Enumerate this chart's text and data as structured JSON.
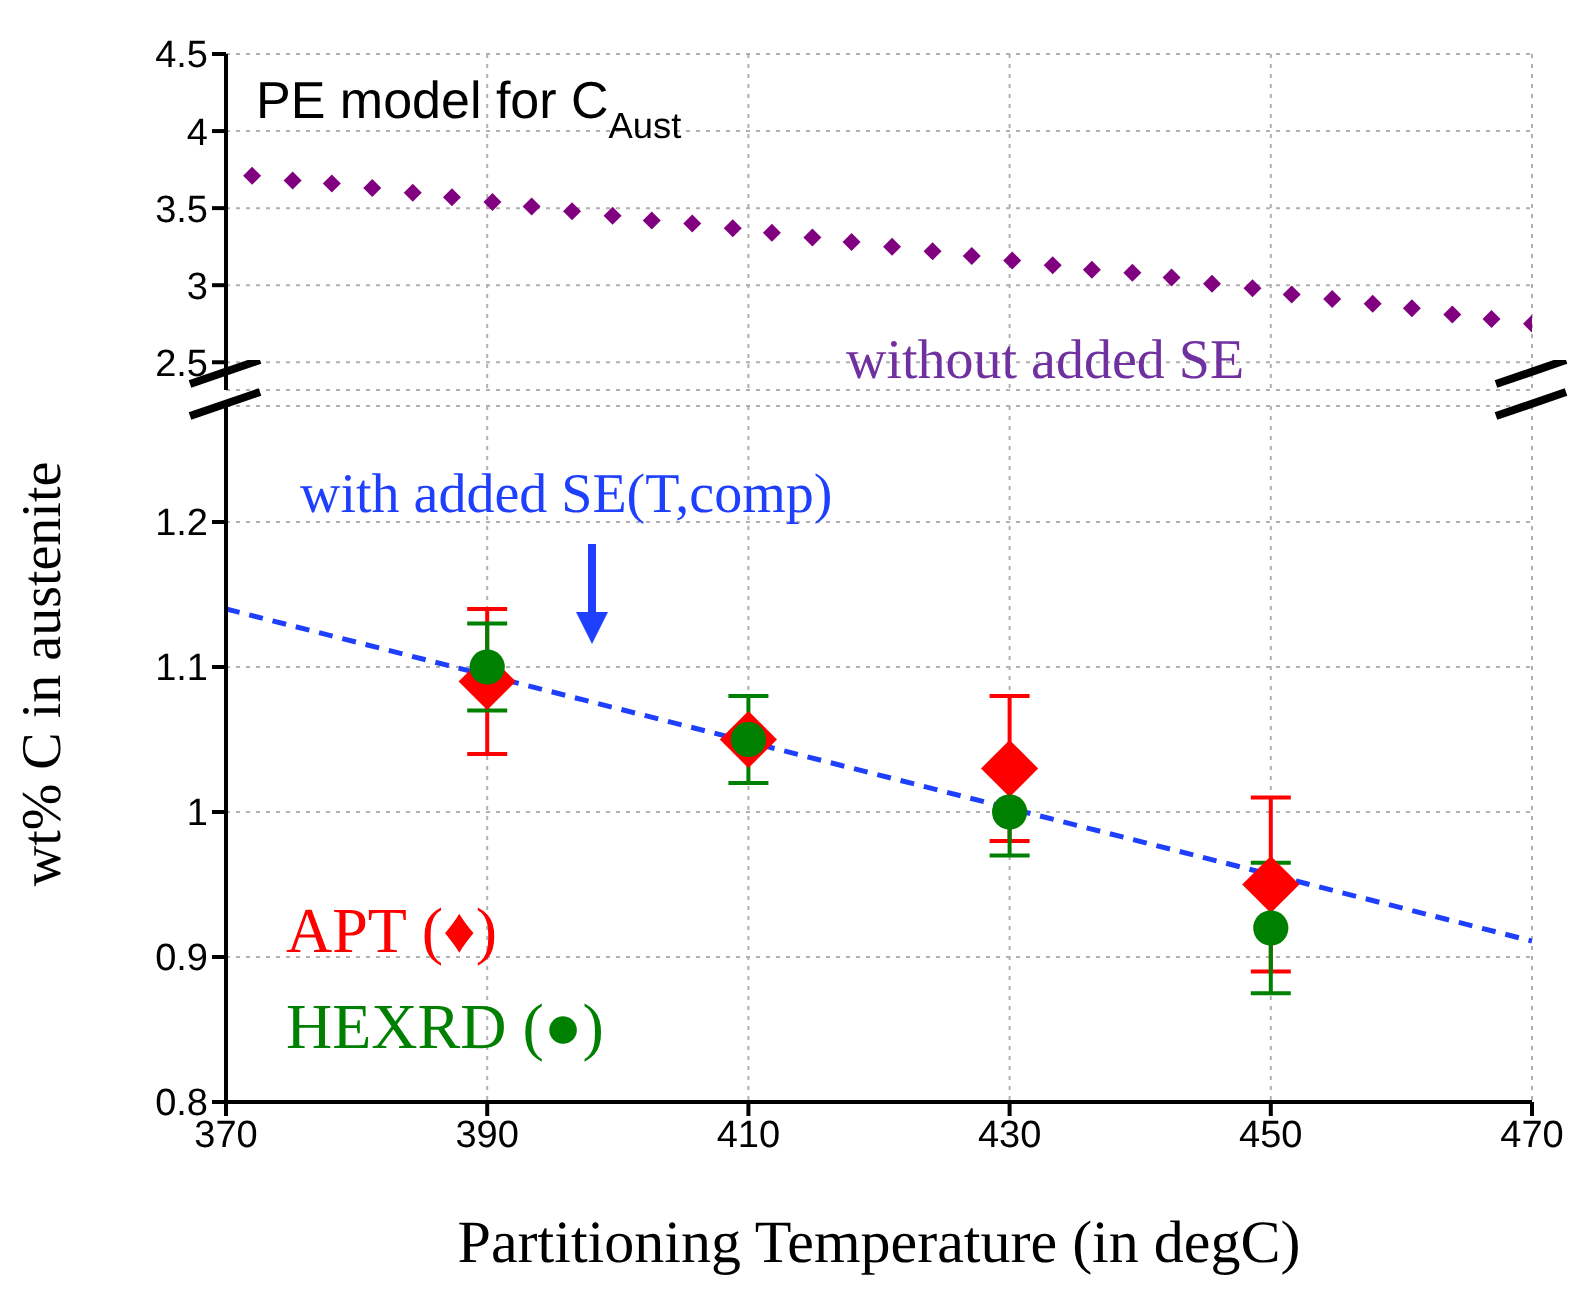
{
  "chart_data": [
    {
      "type": "scatter",
      "annotations": [
        "PE model for C$_{Aust}$",
        "without added SE"
      ],
      "xlim": [
        370,
        470
      ],
      "xticks": [
        370,
        390,
        410,
        430,
        450,
        470
      ],
      "ylim": [
        2.32,
        4.5
      ],
      "yticks": [
        2.5,
        3.0,
        3.5,
        4.0,
        4.5
      ],
      "tick_labels": "y",
      "grid": true,
      "series": [
        {
          "marker": "diamond",
          "color": "#800080",
          "x": [
            372.0,
            375.1,
            378.1,
            381.2,
            384.3,
            387.3,
            390.4,
            393.4,
            396.5,
            399.6,
            402.6,
            405.7,
            408.8,
            411.8,
            414.9,
            417.9,
            421.0,
            424.1,
            427.1,
            430.2,
            433.3,
            436.3,
            439.4,
            442.4,
            445.5,
            448.6,
            451.6,
            454.7,
            457.8,
            460.8,
            463.9,
            466.9,
            470.0
          ],
          "values": [
            3.71,
            3.68,
            3.66,
            3.63,
            3.6,
            3.57,
            3.54,
            3.51,
            3.48,
            3.45,
            3.42,
            3.4,
            3.37,
            3.34,
            3.31,
            3.28,
            3.25,
            3.22,
            3.19,
            3.16,
            3.13,
            3.1,
            3.08,
            3.05,
            3.01,
            2.98,
            2.94,
            2.91,
            2.88,
            2.85,
            2.81,
            2.78,
            2.75
          ]
        }
      ]
    },
    {
      "type": "scatter",
      "xlabel": "Partitioning Temperature (in degC)",
      "ylabel": "wt% C in austenite",
      "annotations": [
        "with added SE(T,comp)"
      ],
      "xlim": [
        370,
        470
      ],
      "xticks": [
        370,
        390,
        410,
        430,
        450,
        470
      ],
      "ylim": [
        0.8,
        1.28
      ],
      "yticks": [
        0.8,
        0.9,
        1.0,
        1.1,
        1.2
      ],
      "grid": true,
      "legend": "bottom left",
      "series": [
        {
          "type": "line",
          "marker": "none",
          "line_style": "dashed",
          "color": "#1f3fff",
          "x": [
            370,
            470
          ],
          "values": [
            1.14,
            0.911
          ]
        },
        {
          "name": "APT (♦)",
          "marker": "diamond",
          "color": "#ff0000",
          "x": [
            390,
            410,
            430,
            450
          ],
          "values": [
            1.09,
            1.05,
            1.03,
            0.95
          ],
          "errors": [
            0.05,
            null,
            0.05,
            0.06
          ]
        },
        {
          "name": "HEXRD (●)",
          "marker": "circle",
          "color": "#008000",
          "x": [
            390,
            410,
            430,
            450
          ],
          "values": [
            1.1,
            1.05,
            1.0,
            0.92
          ],
          "errors": [
            0.03,
            0.03,
            0.03,
            0.045
          ]
        }
      ]
    }
  ]
}
